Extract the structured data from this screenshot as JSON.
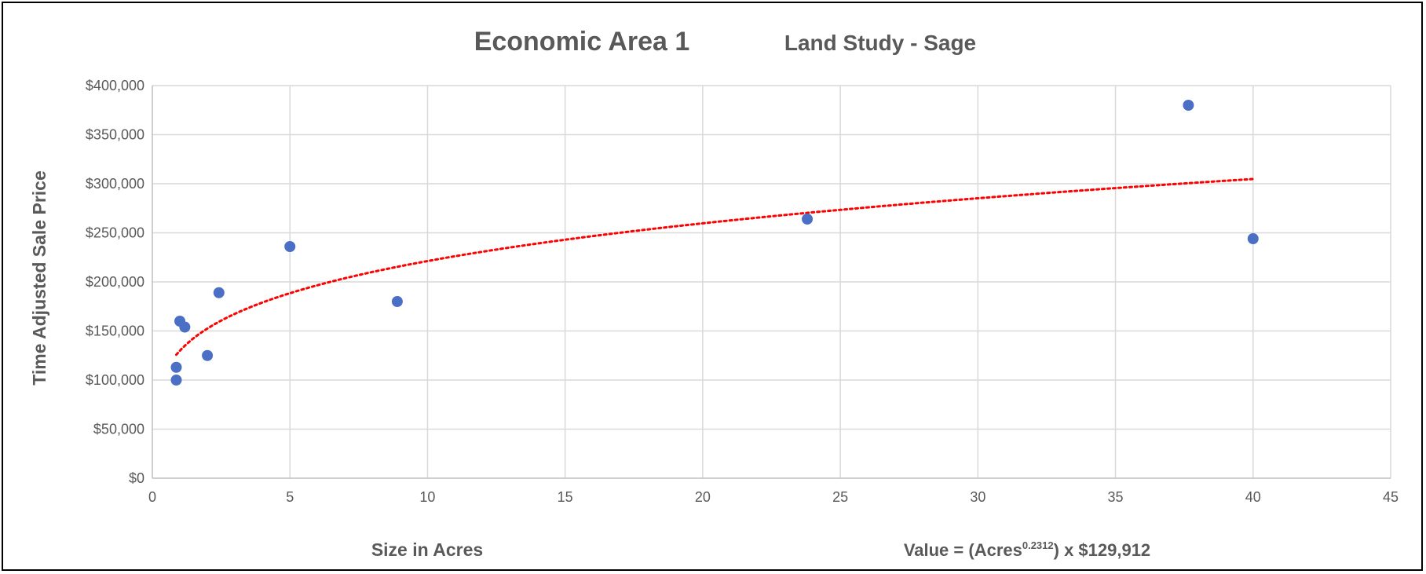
{
  "chart_data": {
    "type": "scatter",
    "title": "Economic Area 1",
    "subtitle": "Land Study -  Sage",
    "xlabel": "Size in Acres",
    "ylabel": "Time Adjusted Sale Price",
    "xlim": [
      0,
      45
    ],
    "ylim": [
      0,
      400000
    ],
    "x_ticks": [
      0,
      5,
      10,
      15,
      20,
      25,
      30,
      35,
      40,
      45
    ],
    "y_ticks": [
      0,
      50000,
      100000,
      150000,
      200000,
      250000,
      300000,
      350000,
      400000
    ],
    "x_tick_labels": [
      "0",
      "5",
      "10",
      "15",
      "20",
      "25",
      "30",
      "35",
      "40",
      "45"
    ],
    "y_tick_labels": [
      "$0",
      "$50,000",
      "$100,000",
      "$150,000",
      "$200,000",
      "$250,000",
      "$300,000",
      "$350,000",
      "$400,000"
    ],
    "grid": true,
    "points": {
      "x": [
        0.87,
        0.87,
        1.0,
        1.18,
        2.0,
        2.42,
        5.0,
        8.9,
        23.8,
        37.65,
        40.0
      ],
      "y": [
        100000,
        113000,
        160000,
        154000,
        125000,
        189000,
        236000,
        180000,
        264000,
        380000,
        244000
      ],
      "color": "#4a6fc4"
    },
    "trendline": {
      "type": "power",
      "exponent": 0.2312,
      "coefficient": 129912,
      "x_range": [
        0.87,
        40.0
      ],
      "color": "#ff0000",
      "style": "dotted"
    },
    "annotation": {
      "text_before": "Value = (Acres",
      "superscript": "0.2312",
      "text_after": ") x $129,912"
    }
  }
}
